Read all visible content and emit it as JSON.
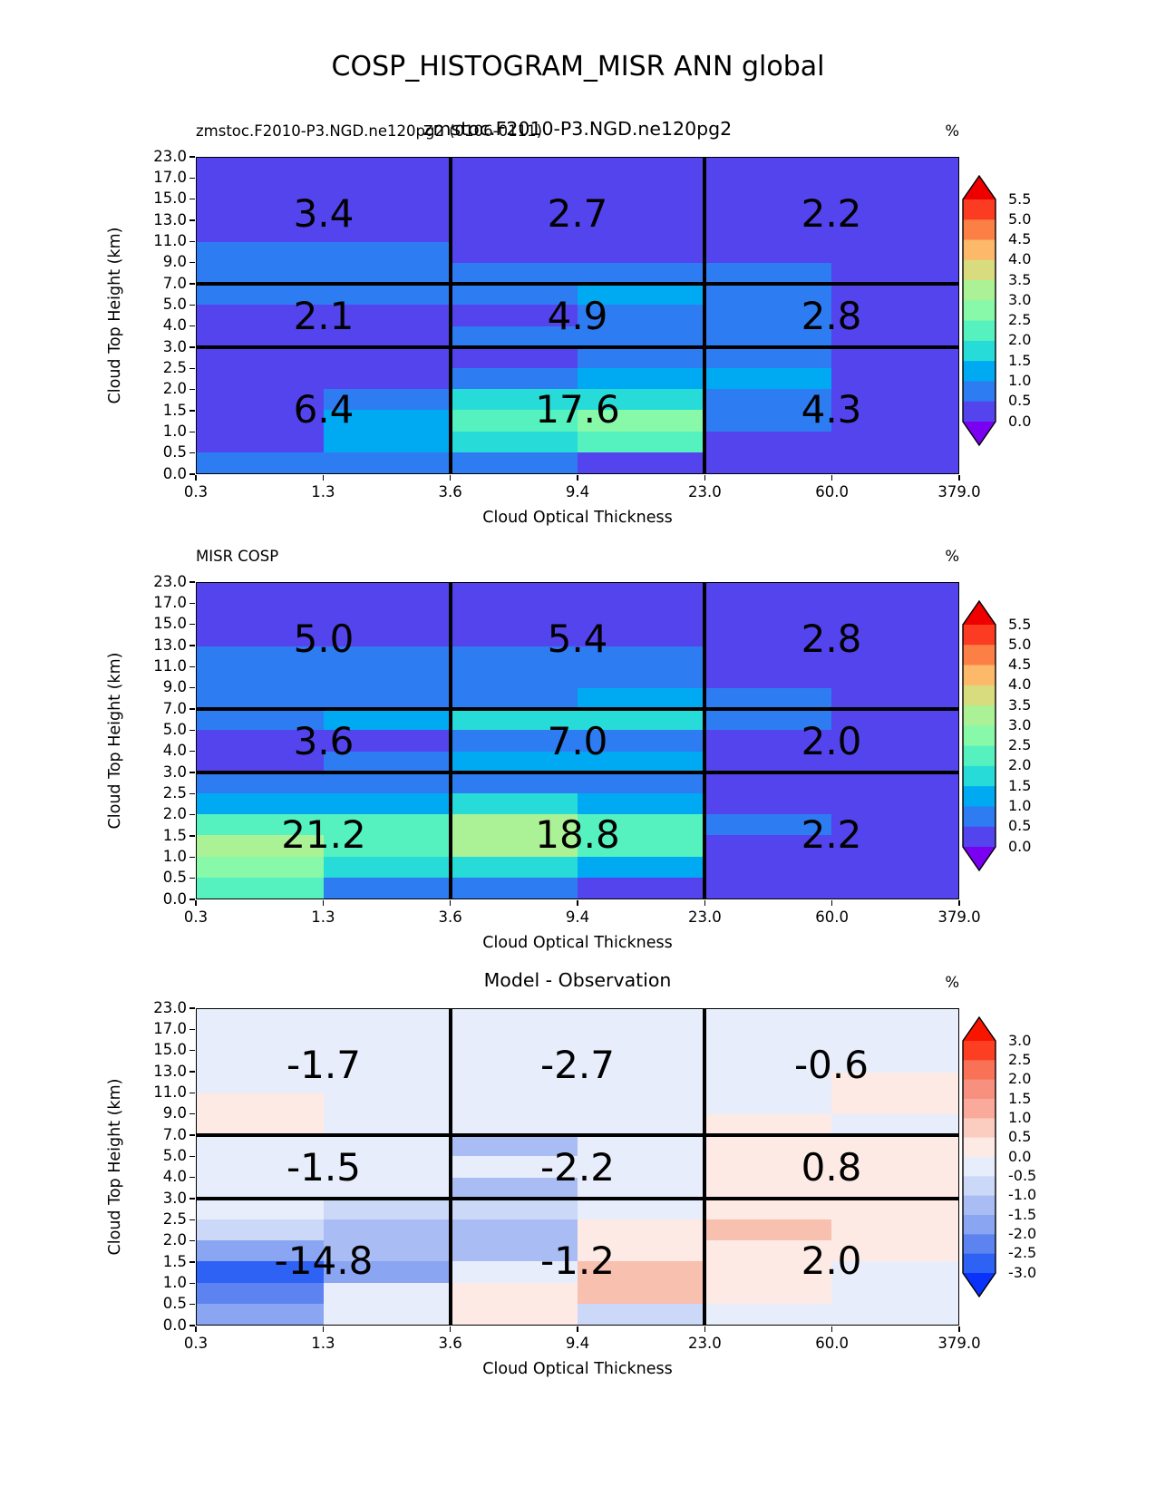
{
  "title": "COSP_HISTOGRAM_MISR ANN global",
  "axes": {
    "x_label": "Cloud Optical Thickness",
    "y_label": "Cloud Top Height (km)",
    "x_ticks": [
      "0.3",
      "1.3",
      "3.6",
      "9.4",
      "23.0",
      "60.0",
      "379.0"
    ],
    "y_ticks": [
      "23.0",
      "17.0",
      "15.0",
      "13.0",
      "11.0",
      "9.0",
      "7.0",
      "5.0",
      "4.0",
      "3.0",
      "2.5",
      "2.0",
      "1.5",
      "1.0",
      "0.5",
      "0.0"
    ]
  },
  "palette": {
    "a": "#5444ee",
    "b": "#2e7cf2",
    "c": "#00aaf2",
    "d": "#27dcd8",
    "e": "#55f2bf",
    "f": "#87f9a9",
    "g": "#aaf295",
    "L": "#e8edfb",
    "P": "#fdeae4",
    "S": "#f8c0ae",
    "1": "#ccd8f8",
    "2": "#a9bdf4",
    "3": "#8aa5f2",
    "4": "#5c83f0",
    "5": "#2e62f4"
  },
  "panels": [
    {
      "name": "model",
      "title_left": "zmstoc.F2010-P3.NGD.ne120pg2 (0106-0111)",
      "title_center": "zmstoc.F2010-P3.NGD.ne120pg2",
      "unit": "%",
      "grid": [
        "aaaaaa",
        "aaaaaa",
        "aaaaaa",
        "aaaaaa",
        "bbaaaa",
        "bbbbba",
        "bbbcba",
        "aaabba",
        "aabbba",
        "aaabba",
        "aabcca",
        "abddba",
        "acefba",
        "acdeaa",
        "bbbaaa"
      ],
      "region_values": [
        [
          "3.4",
          "2.7",
          "2.2"
        ],
        [
          "2.1",
          "4.9",
          "2.8"
        ],
        [
          "6.4",
          "17.6",
          "4.3"
        ]
      ],
      "colorbar": {
        "labels": [
          "5.5",
          "5.0",
          "4.5",
          "4.0",
          "3.5",
          "3.0",
          "2.5",
          "2.0",
          "1.5",
          "1.0",
          "0.5",
          "0.0"
        ],
        "segments": [
          "#fb3c22",
          "#fc8046",
          "#fdb96a",
          "#d9dc7e",
          "#aaf295",
          "#87f9a9",
          "#55f2bf",
          "#27dcd8",
          "#00aaf2",
          "#2e7cf2",
          "#5444ee"
        ],
        "arrow_top": "#ee0000",
        "arrow_bottom": "#7a00f2"
      }
    },
    {
      "name": "observation",
      "title_left": "MISR COSP",
      "title_center": "",
      "unit": "%",
      "grid": [
        "aaaaaa",
        "aaaaaa",
        "aaaaaa",
        "bbbbaa",
        "bbbbaa",
        "bbbcba",
        "bcddba",
        "aabbaa",
        "abccaa",
        "bbbbaa",
        "ccdcaa",
        "eegeba",
        "gegeaa",
        "fddcaa",
        "ebbaaa"
      ],
      "region_values": [
        [
          "5.0",
          "5.4",
          "2.8"
        ],
        [
          "3.6",
          "7.0",
          "2.0"
        ],
        [
          "21.2",
          "18.8",
          "2.2"
        ]
      ],
      "colorbar": {
        "labels": [
          "5.5",
          "5.0",
          "4.5",
          "4.0",
          "3.5",
          "3.0",
          "2.5",
          "2.0",
          "1.5",
          "1.0",
          "0.5",
          "0.0"
        ],
        "segments": [
          "#fb3c22",
          "#fc8046",
          "#fdb96a",
          "#d9dc7e",
          "#aaf295",
          "#87f9a9",
          "#55f2bf",
          "#27dcd8",
          "#00aaf2",
          "#2e7cf2",
          "#5444ee"
        ],
        "arrow_top": "#ee0000",
        "arrow_bottom": "#7a00f2"
      }
    },
    {
      "name": "difference",
      "title_left": "",
      "title_center": "Model - Observation",
      "unit": "%",
      "grid": [
        "LLLLLL",
        "LLLLLL",
        "LLLLLL",
        "LLLLLP",
        "PLLLLP",
        "PLLLPL",
        "LL2LPP",
        "LLLLPP",
        "LL2LPP",
        "L11LPP",
        "122PSP",
        "322PPP",
        "53LSPL",
        "4LPSPL",
        "3LP1LL"
      ],
      "region_values": [
        [
          "-1.7",
          "-2.7",
          "-0.6"
        ],
        [
          "-1.5",
          "-2.2",
          "0.8"
        ],
        [
          "-14.8",
          "-1.2",
          "2.0"
        ]
      ],
      "colorbar": {
        "labels": [
          "3.0",
          "2.5",
          "2.0",
          "1.5",
          "1.0",
          "0.5",
          "0.0",
          "-0.5",
          "-1.0",
          "-1.5",
          "-2.0",
          "-2.5",
          "-3.0"
        ],
        "segments": [
          "#fc3f22",
          "#f97258",
          "#f89080",
          "#f9aa9a",
          "#fbccc0",
          "#fdeae4",
          "#e8edfb",
          "#ccd8f8",
          "#a9bdf4",
          "#8aa5f2",
          "#5c83f0",
          "#2e62f4"
        ],
        "arrow_top": "#f81500",
        "arrow_bottom": "#0a32fb"
      }
    }
  ],
  "chart_data": {
    "type": "heatmap",
    "title": "COSP_HISTOGRAM_MISR ANN global",
    "xlabel": "Cloud Optical Thickness",
    "ylabel": "Cloud Top Height (km)",
    "unit": "%",
    "x_bin_edges": [
      0.3,
      1.3,
      3.6,
      9.4,
      23.0,
      60.0,
      379.0
    ],
    "y_bin_edges_km": [
      0.0,
      0.5,
      1.0,
      1.5,
      2.0,
      2.5,
      3.0,
      4.0,
      5.0,
      7.0,
      9.0,
      11.0,
      13.0,
      15.0,
      17.0,
      23.0
    ],
    "region_x_bands": [
      [
        0.3,
        3.6
      ],
      [
        3.6,
        23.0
      ],
      [
        23.0,
        379.0
      ]
    ],
    "region_y_bands_km": [
      [
        7.0,
        23.0
      ],
      [
        3.0,
        7.0
      ],
      [
        0.0,
        3.0
      ]
    ],
    "colorbar_range": [
      0.0,
      5.5
    ],
    "diff_colorbar_range": [
      -3.0,
      3.0
    ],
    "panels": [
      {
        "title": "zmstoc.F2010-P3.NGD.ne120pg2",
        "region_totals": [
          [
            3.4,
            2.7,
            2.2
          ],
          [
            2.1,
            4.9,
            2.8
          ],
          [
            6.4,
            17.6,
            4.3
          ]
        ],
        "cell_values_top_to_bottom": [
          [
            0.25,
            0.25,
            0.25,
            0.25,
            0.25,
            0.25
          ],
          [
            0.25,
            0.25,
            0.25,
            0.25,
            0.25,
            0.25
          ],
          [
            0.25,
            0.25,
            0.25,
            0.25,
            0.25,
            0.25
          ],
          [
            0.25,
            0.25,
            0.25,
            0.25,
            0.25,
            0.25
          ],
          [
            0.75,
            0.75,
            0.25,
            0.25,
            0.25,
            0.25
          ],
          [
            0.75,
            0.75,
            0.75,
            0.75,
            0.75,
            0.25
          ],
          [
            0.75,
            0.75,
            0.75,
            1.25,
            0.75,
            0.25
          ],
          [
            0.25,
            0.25,
            0.25,
            0.75,
            0.75,
            0.25
          ],
          [
            0.25,
            0.25,
            0.75,
            0.75,
            0.75,
            0.25
          ],
          [
            0.25,
            0.25,
            0.25,
            0.75,
            0.75,
            0.25
          ],
          [
            0.25,
            0.25,
            0.75,
            1.25,
            1.25,
            0.25
          ],
          [
            0.25,
            0.75,
            1.75,
            1.75,
            0.75,
            0.25
          ],
          [
            0.25,
            1.25,
            2.25,
            2.75,
            0.75,
            0.25
          ],
          [
            0.25,
            1.25,
            1.75,
            2.25,
            0.25,
            0.25
          ],
          [
            0.75,
            0.75,
            0.75,
            0.25,
            0.25,
            0.25
          ]
        ]
      },
      {
        "title": "MISR COSP",
        "region_totals": [
          [
            5.0,
            5.4,
            2.8
          ],
          [
            3.6,
            7.0,
            2.0
          ],
          [
            21.2,
            18.8,
            2.2
          ]
        ],
        "cell_values_top_to_bottom": [
          [
            0.25,
            0.25,
            0.25,
            0.25,
            0.25,
            0.25
          ],
          [
            0.25,
            0.25,
            0.25,
            0.25,
            0.25,
            0.25
          ],
          [
            0.25,
            0.25,
            0.25,
            0.25,
            0.25,
            0.25
          ],
          [
            0.75,
            0.75,
            0.75,
            0.75,
            0.25,
            0.25
          ],
          [
            0.75,
            0.75,
            0.75,
            0.75,
            0.25,
            0.25
          ],
          [
            0.75,
            0.75,
            0.75,
            1.25,
            0.75,
            0.25
          ],
          [
            0.75,
            1.25,
            1.75,
            1.75,
            0.75,
            0.25
          ],
          [
            0.25,
            0.25,
            0.75,
            0.75,
            0.25,
            0.25
          ],
          [
            0.25,
            0.75,
            1.25,
            1.25,
            0.25,
            0.25
          ],
          [
            0.75,
            0.75,
            0.75,
            0.75,
            0.25,
            0.25
          ],
          [
            1.25,
            1.25,
            1.75,
            1.25,
            0.25,
            0.25
          ],
          [
            2.25,
            2.25,
            3.25,
            2.25,
            0.75,
            0.25
          ],
          [
            3.25,
            2.25,
            3.25,
            2.25,
            0.25,
            0.25
          ],
          [
            2.75,
            1.75,
            1.75,
            1.25,
            0.25,
            0.25
          ],
          [
            2.25,
            0.75,
            0.75,
            0.25,
            0.25,
            0.25
          ]
        ]
      },
      {
        "title": "Model - Observation",
        "region_totals": [
          [
            -1.7,
            -2.7,
            -0.6
          ],
          [
            -1.5,
            -2.2,
            0.8
          ],
          [
            -14.8,
            -1.2,
            2.0
          ]
        ],
        "cell_values_top_to_bottom": [
          [
            -0.25,
            -0.25,
            -0.25,
            -0.25,
            -0.25,
            -0.25
          ],
          [
            -0.25,
            -0.25,
            -0.25,
            -0.25,
            -0.25,
            -0.25
          ],
          [
            -0.25,
            -0.25,
            -0.25,
            -0.25,
            -0.25,
            -0.25
          ],
          [
            -0.25,
            -0.25,
            -0.25,
            -0.25,
            -0.25,
            0.25
          ],
          [
            0.25,
            -0.25,
            -0.25,
            -0.25,
            -0.25,
            0.25
          ],
          [
            0.25,
            -0.25,
            -0.25,
            -0.25,
            0.25,
            -0.25
          ],
          [
            -0.25,
            -0.25,
            -1.25,
            -0.25,
            0.25,
            0.25
          ],
          [
            -0.25,
            -0.25,
            -0.25,
            -0.25,
            0.25,
            0.25
          ],
          [
            -0.25,
            -0.25,
            -1.25,
            -0.25,
            0.25,
            0.25
          ],
          [
            -0.25,
            -0.75,
            -0.75,
            -0.25,
            0.25,
            0.25
          ],
          [
            -0.75,
            -1.25,
            -1.25,
            0.25,
            0.75,
            0.25
          ],
          [
            -1.75,
            -1.25,
            -1.25,
            0.25,
            0.25,
            0.25
          ],
          [
            -2.75,
            -1.75,
            -0.25,
            0.75,
            0.25,
            -0.25
          ],
          [
            -2.25,
            -0.25,
            0.25,
            0.75,
            0.25,
            -0.25
          ],
          [
            -1.75,
            -0.25,
            0.25,
            -0.75,
            -0.25,
            -0.25
          ]
        ]
      }
    ]
  }
}
